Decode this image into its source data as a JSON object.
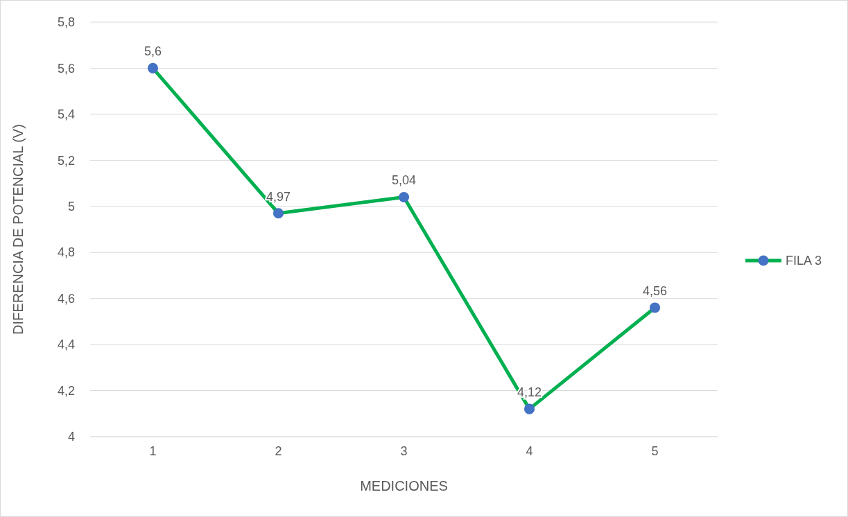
{
  "chart_data": {
    "type": "line",
    "xlabel": "MEDICIONES",
    "ylabel": "DIFERENCIA DE POTENCIAL (V)",
    "categories": [
      "1",
      "2",
      "3",
      "4",
      "5"
    ],
    "series": [
      {
        "name": "FILA 3",
        "color": "#00b050",
        "colors": [
          "#4472c4",
          "#4472c4",
          "#4472c4",
          "#4472c4",
          "#4472c4"
        ],
        "values": [
          5.6,
          4.97,
          5.04,
          4.12,
          4.56
        ],
        "value_labels": [
          "5,6",
          "4,97",
          "5,04",
          "4,12",
          "4,56"
        ]
      }
    ],
    "ylim": [
      4,
      5.8
    ],
    "yticks": [
      4,
      {
        "value": 4.2,
        "label": "4,2"
      },
      {
        "value": 4.4,
        "label": "4,4"
      },
      {
        "value": 4.6,
        "label": "4,6"
      },
      {
        "value": 4.8,
        "label": "4,8"
      },
      5,
      {
        "value": 5.2,
        "label": "5,2"
      },
      {
        "value": 5.4,
        "label": "5,4"
      },
      {
        "value": 5.6,
        "label": "5,6"
      },
      {
        "value": 5.8,
        "label": "5,8"
      }
    ],
    "grid": "y",
    "legend": "right",
    "marker": "circle",
    "line_style": "solid"
  }
}
